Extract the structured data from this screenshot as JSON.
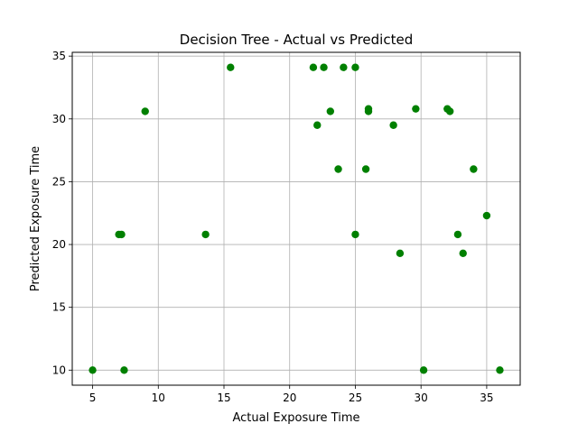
{
  "chart_data": {
    "type": "scatter",
    "title": "Decision Tree - Actual vs Predicted",
    "xlabel": "Actual Exposure Time",
    "ylabel": "Predicted Exposure Time",
    "xlim": [
      3.45,
      37.55
    ],
    "ylim": [
      8.8,
      35.3
    ],
    "xticks": [
      5,
      10,
      15,
      20,
      25,
      30,
      35
    ],
    "yticks": [
      10,
      15,
      20,
      25,
      30,
      35
    ],
    "grid": true,
    "marker_color": "#008000",
    "points": [
      {
        "x": 5.0,
        "y": 10.0
      },
      {
        "x": 7.0,
        "y": 20.8
      },
      {
        "x": 7.2,
        "y": 20.8
      },
      {
        "x": 7.4,
        "y": 10.0
      },
      {
        "x": 9.0,
        "y": 30.6
      },
      {
        "x": 13.6,
        "y": 20.8
      },
      {
        "x": 15.5,
        "y": 34.1
      },
      {
        "x": 21.8,
        "y": 34.1
      },
      {
        "x": 22.1,
        "y": 29.5
      },
      {
        "x": 22.6,
        "y": 34.1
      },
      {
        "x": 23.1,
        "y": 30.6
      },
      {
        "x": 23.7,
        "y": 26.0
      },
      {
        "x": 24.1,
        "y": 34.1
      },
      {
        "x": 25.0,
        "y": 34.1
      },
      {
        "x": 25.0,
        "y": 20.8
      },
      {
        "x": 25.8,
        "y": 26.0
      },
      {
        "x": 26.0,
        "y": 30.8
      },
      {
        "x": 26.0,
        "y": 30.6
      },
      {
        "x": 27.9,
        "y": 29.5
      },
      {
        "x": 28.4,
        "y": 19.3
      },
      {
        "x": 29.6,
        "y": 30.8
      },
      {
        "x": 30.2,
        "y": 10.0
      },
      {
        "x": 32.0,
        "y": 30.8
      },
      {
        "x": 32.2,
        "y": 30.6
      },
      {
        "x": 32.8,
        "y": 20.8
      },
      {
        "x": 33.2,
        "y": 19.3
      },
      {
        "x": 34.0,
        "y": 26.0
      },
      {
        "x": 35.0,
        "y": 22.3
      },
      {
        "x": 36.0,
        "y": 10.0
      }
    ]
  }
}
